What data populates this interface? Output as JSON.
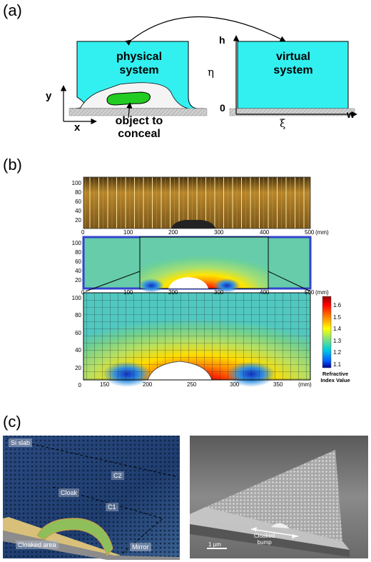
{
  "panel_a": {
    "label": "(a)",
    "physical": {
      "line1": "physical",
      "line2": "system"
    },
    "virtual": {
      "line1": "virtual",
      "line2": "system"
    },
    "object": {
      "line1": "object to",
      "line2": "conceal"
    },
    "axis_y": "y",
    "axis_x": "x",
    "axis_h": "h",
    "axis_zero": "0",
    "axis_w": "w",
    "eta": "η",
    "xi": "ξ",
    "colors": {
      "system_fill": "#33f0f0",
      "object_fill": "#22cc22",
      "ground": "#c8c8c8"
    }
  },
  "panel_b": {
    "label": "(b)",
    "top_plot": {
      "y_ticks": [
        "100",
        "80",
        "60",
        "40",
        "20"
      ],
      "x_ticks": [
        "0",
        "100",
        "200",
        "300",
        "400",
        "500"
      ],
      "unit": "(mm)"
    },
    "mid_plot": {
      "y_ticks": [
        "100",
        "80",
        "60",
        "40",
        "20"
      ],
      "x_ticks": [
        "0",
        "100",
        "200",
        "300",
        "400",
        "500"
      ],
      "unit": "(mm)"
    },
    "bottom_plot": {
      "y_ticks": [
        "100",
        "80",
        "60",
        "40",
        "20",
        "0"
      ],
      "x_ticks": [
        "150",
        "200",
        "250",
        "300",
        "350"
      ],
      "unit": "(mm)"
    },
    "colorbar": {
      "ticks": [
        "1.6",
        "1.5",
        "1.4",
        "1.3",
        "1.2",
        "1.1"
      ],
      "title_line1": "Refractive",
      "title_line2": "Index Value"
    }
  },
  "panel_c": {
    "label": "(c)",
    "left": {
      "si_slab": "Si slab",
      "c2": "C2",
      "cloak": "Cloak",
      "c1": "C1",
      "cloaked_area": "Cloaked area",
      "mirror": "Mirror"
    },
    "right": {
      "cloaked_line1": "Cloaked",
      "cloaked_line2": "bump",
      "scale": "1 µm"
    }
  }
}
